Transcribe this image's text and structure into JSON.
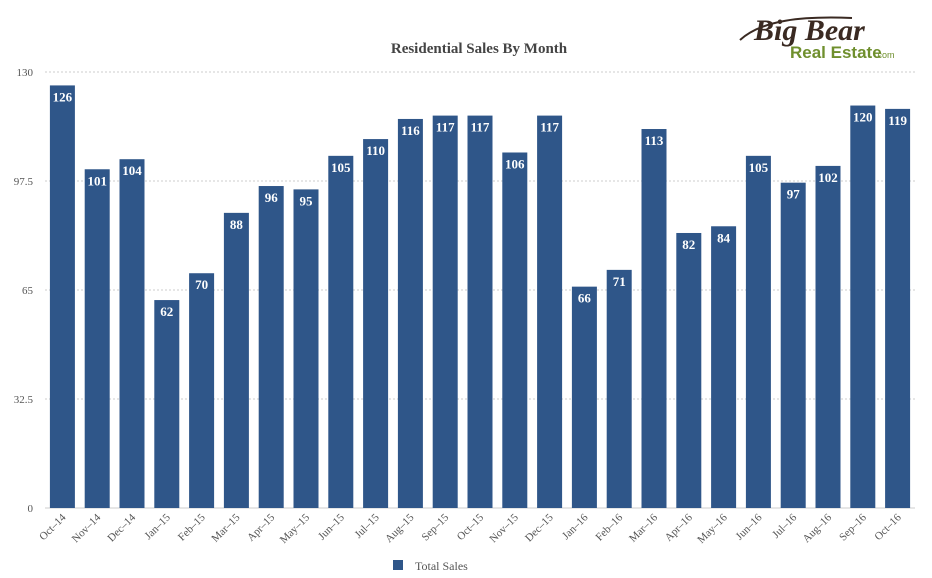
{
  "logo": {
    "line1": "Big Bear",
    "line2": "Real Estate",
    "suffix": ".com"
  },
  "chart_data": {
    "type": "bar",
    "title": "Residential Sales By Month",
    "categories": [
      "Oct–14",
      "Nov–14",
      "Dec–14",
      "Jan–15",
      "Feb–15",
      "Mar–15",
      "Apr–15",
      "May–15",
      "Jun–15",
      "Jul–15",
      "Aug–15",
      "Sep–15",
      "Oct–15",
      "Nov–15",
      "Dec–15",
      "Jan–16",
      "Feb–16",
      "Mar–16",
      "Apr–16",
      "May–16",
      "Jun–16",
      "Jul–16",
      "Aug–16",
      "Sep–16",
      "Oct–16"
    ],
    "series": [
      {
        "name": "Total Sales",
        "values": [
          126,
          101,
          104,
          62,
          70,
          88,
          96,
          95,
          105,
          110,
          116,
          117,
          117,
          106,
          117,
          66,
          71,
          113,
          82,
          84,
          105,
          97,
          102,
          120,
          119
        ]
      }
    ],
    "yticks": [
      "0",
      "32.5",
      "65",
      "97.5",
      "130"
    ],
    "ylim": [
      0,
      130
    ],
    "grid": true,
    "legend": "bottom",
    "colors": {
      "bar": "#2f5689",
      "grid": "#cccccc",
      "logo_dark": "#3a2a22",
      "logo_green": "#6f8f2d"
    }
  }
}
